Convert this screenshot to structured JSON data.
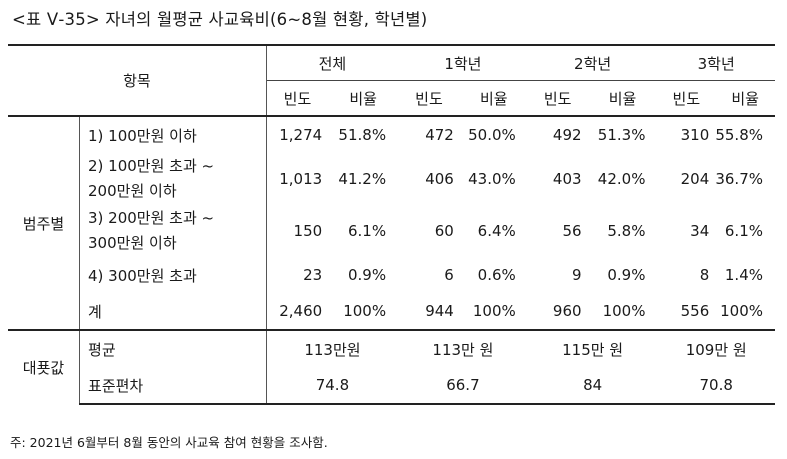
{
  "caption": "<표 Ⅴ-35> 자녀의 월평균 사교육비(6~8월 현황, 학년별)",
  "header": {
    "item": "항목",
    "groups": [
      "전체",
      "1학년",
      "2학년",
      "3학년"
    ],
    "freq": "빈도",
    "ratio": "비율"
  },
  "section1": {
    "label": "범주별",
    "rows": [
      {
        "label": [
          "1) 100만원 이하"
        ],
        "values": [
          "1,274",
          "51.8%",
          "472",
          "50.0%",
          "492",
          "51.3%",
          "310",
          "55.8%"
        ]
      },
      {
        "label": [
          "2) 100만원 초과 ~",
          "200만원 이하"
        ],
        "values": [
          "1,013",
          "41.2%",
          "406",
          "43.0%",
          "403",
          "42.0%",
          "204",
          "36.7%"
        ]
      },
      {
        "label": [
          "3) 200만원 초과 ~",
          "300만원 이하"
        ],
        "values": [
          "150",
          "6.1%",
          "60",
          "6.4%",
          "56",
          "5.8%",
          "34",
          "6.1%"
        ]
      },
      {
        "label": [
          "4) 300만원 초과"
        ],
        "values": [
          "23",
          "0.9%",
          "6",
          "0.6%",
          "9",
          "0.9%",
          "8",
          "1.4%"
        ]
      },
      {
        "label": [
          "계"
        ],
        "values": [
          "2,460",
          "100%",
          "944",
          "100%",
          "960",
          "100%",
          "556",
          "100%"
        ]
      }
    ]
  },
  "section2": {
    "label": "대푯값",
    "rows": [
      {
        "label": "평균",
        "values": [
          "113만원",
          "113만 원",
          "115만 원",
          "109만 원"
        ]
      },
      {
        "label": "표준편차",
        "values": [
          "74.8",
          "66.7",
          "84",
          "70.8"
        ]
      }
    ]
  },
  "footnote": "주: 2021년 6월부터 8월 동안의 사교육 참여 현황을 조사함."
}
